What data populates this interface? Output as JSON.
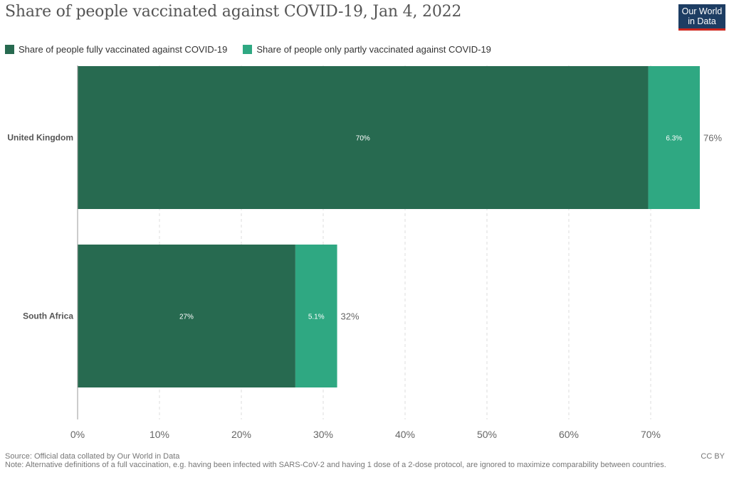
{
  "title": "Share of people vaccinated against COVID-19, Jan 4, 2022",
  "logo": {
    "line1": "Our World",
    "line2": "in Data"
  },
  "legend": [
    {
      "label": "Share of people fully vaccinated against COVID-19",
      "color": "#276a50"
    },
    {
      "label": "Share of people only partly vaccinated against COVID-19",
      "color": "#2fa882"
    }
  ],
  "source": "Source: Official data collated by Our World in Data",
  "note": "Note: Alternative definitions of a full vaccination, e.g. having been infected with SARS-CoV-2 and having 1 dose of a 2-dose protocol, are ignored to maximize comparability between countries.",
  "license": "CC BY",
  "chart_data": {
    "type": "bar",
    "orientation": "horizontal",
    "stacked": true,
    "categories": [
      "United Kingdom",
      "South Africa"
    ],
    "series": [
      {
        "name": "Share of people fully vaccinated against COVID-19",
        "values": [
          69.7,
          26.6
        ],
        "labels": [
          "70%",
          "27%"
        ],
        "color": "#276a50"
      },
      {
        "name": "Share of people only partly vaccinated against COVID-19",
        "values": [
          6.3,
          5.1
        ],
        "labels": [
          "6.3%",
          "5.1%"
        ],
        "color": "#2fa882"
      }
    ],
    "totals": [
      76,
      32
    ],
    "total_labels": [
      "76%",
      "32%"
    ],
    "xlim": [
      0,
      76
    ],
    "xticks": [
      0,
      10,
      20,
      30,
      40,
      50,
      60,
      70
    ],
    "xtick_labels": [
      "0%",
      "10%",
      "20%",
      "30%",
      "40%",
      "50%",
      "60%",
      "70%"
    ],
    "grid": true,
    "legend_position": "top-left"
  }
}
